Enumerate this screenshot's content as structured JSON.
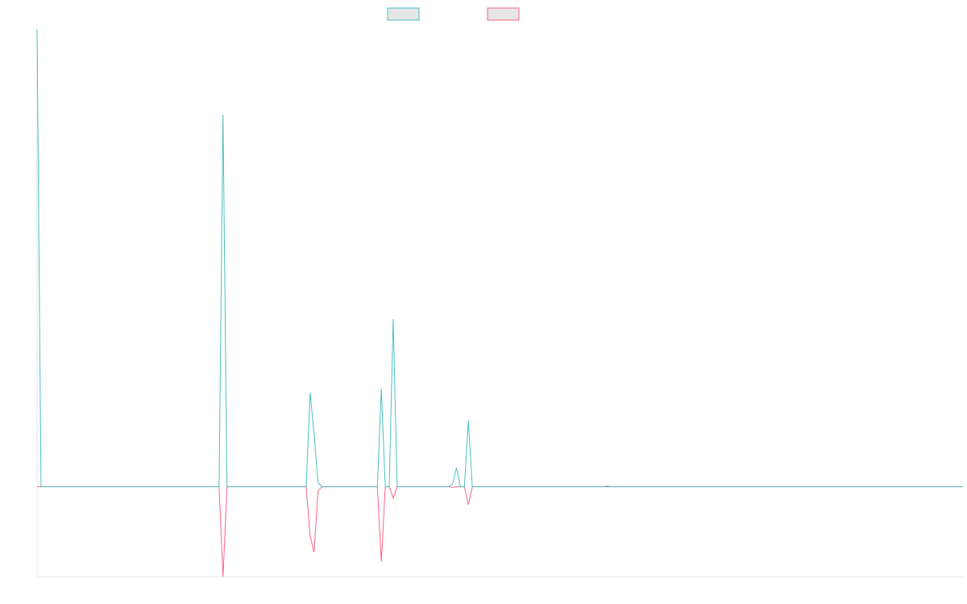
{
  "chart_data": {
    "type": "line",
    "title": "",
    "xlabel": "",
    "ylabel": "",
    "legend_position": "top-center",
    "grid": false,
    "x": [
      0,
      1,
      2,
      3,
      4,
      5,
      6,
      7,
      8,
      9,
      10,
      11,
      12,
      13,
      14,
      15,
      16,
      17,
      18,
      19,
      20,
      21,
      22,
      23,
      24,
      25,
      26,
      27,
      28,
      29,
      30,
      31,
      32,
      33,
      34,
      35,
      36,
      37,
      38,
      39,
      40,
      41,
      42,
      43,
      44,
      45,
      46,
      47,
      48,
      49,
      50,
      51,
      52,
      53,
      54,
      55,
      56,
      57,
      58,
      59,
      60,
      61,
      62,
      63,
      64,
      65,
      66,
      67,
      68,
      69,
      70,
      71,
      72,
      73,
      74,
      75,
      76,
      77,
      78,
      79,
      80,
      81,
      82,
      83,
      84,
      85,
      86,
      87,
      88,
      89,
      90,
      91,
      92,
      93,
      94,
      95,
      96,
      97,
      98,
      99,
      100,
      101,
      102,
      103,
      104,
      105,
      106,
      107,
      108,
      109,
      110,
      111,
      112,
      113,
      114,
      115,
      116,
      117,
      118,
      119,
      120,
      121,
      122,
      123,
      124,
      125,
      126,
      127,
      128,
      129,
      130,
      131,
      132,
      133,
      134,
      135,
      136,
      137,
      138,
      139,
      140,
      141,
      142,
      143,
      144,
      145,
      146,
      147,
      148,
      149,
      150,
      151,
      152,
      153,
      154,
      155,
      156,
      157,
      158,
      159,
      160,
      161,
      162,
      163,
      164,
      165,
      166,
      167,
      168,
      169,
      170,
      171,
      172,
      173,
      174,
      175,
      176,
      177,
      178,
      179,
      180,
      181,
      182,
      183,
      184,
      185,
      186,
      187,
      188,
      189,
      190,
      191,
      192,
      193,
      194,
      195,
      196,
      197,
      198,
      199,
      200,
      201,
      202,
      203,
      204,
      205,
      206,
      207,
      208,
      209,
      210,
      211,
      212,
      213,
      214,
      215,
      216,
      217,
      218,
      219,
      220,
      221,
      222,
      223,
      224,
      225,
      226,
      227,
      228,
      229,
      230,
      231,
      232,
      233,
      234
    ],
    "ylim": [
      -11,
      56
    ],
    "series": [
      {
        "name": "",
        "color": "#4bc0c0",
        "points": [
          [
            0,
            56
          ],
          [
            1,
            0
          ],
          [
            46,
            0
          ],
          [
            47,
            45.5
          ],
          [
            48,
            0
          ],
          [
            68,
            0
          ],
          [
            69,
            11.5
          ],
          [
            70,
            6.5
          ],
          [
            71,
            0.5
          ],
          [
            72,
            0
          ],
          [
            86,
            0
          ],
          [
            87,
            12
          ],
          [
            88,
            0
          ],
          [
            89,
            0
          ],
          [
            90,
            20.5
          ],
          [
            91,
            0
          ],
          [
            104,
            0
          ],
          [
            105,
            0.3
          ],
          [
            106,
            2.3
          ],
          [
            107,
            0
          ],
          [
            108,
            0
          ],
          [
            109,
            8.1
          ],
          [
            110,
            0
          ],
          [
            234,
            0
          ]
        ]
      },
      {
        "name": "",
        "color": "#ff6384",
        "points": [
          [
            0,
            0
          ],
          [
            46,
            0
          ],
          [
            47,
            -11
          ],
          [
            48,
            0
          ],
          [
            68,
            0
          ],
          [
            69,
            -6
          ],
          [
            70,
            -8
          ],
          [
            71,
            -0.5
          ],
          [
            72,
            0
          ],
          [
            86,
            0
          ],
          [
            87,
            -9.2
          ],
          [
            88,
            0
          ],
          [
            89,
            0
          ],
          [
            90,
            -1.4
          ],
          [
            91,
            0
          ],
          [
            104,
            0
          ],
          [
            105,
            -0.1
          ],
          [
            106,
            0
          ],
          [
            107,
            0
          ],
          [
            108,
            0
          ],
          [
            109,
            -2.2
          ],
          [
            110,
            0
          ],
          [
            143,
            0
          ],
          [
            144,
            0.1
          ],
          [
            145,
            0
          ],
          [
            234,
            0
          ]
        ]
      }
    ]
  }
}
